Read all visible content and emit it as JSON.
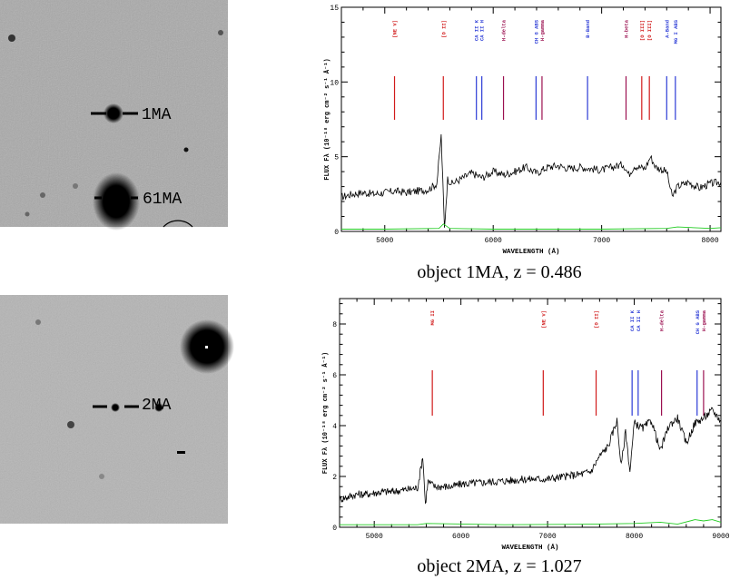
{
  "panels": [
    {
      "id": "1ma",
      "caption": "object 1MA, z = 0.486",
      "stamp": {
        "labels": [
          {
            "text": "1MA"
          },
          {
            "text": "61MA"
          }
        ]
      },
      "chart_data": {
        "type": "line",
        "xlabel": "WAVELENGTH (Å)",
        "ylabel": "FLUX Fλ (10⁻¹⁸ erg cm⁻² s⁻¹ Å⁻¹)",
        "xlim": [
          4600,
          8100
        ],
        "ylim": [
          0,
          15
        ],
        "xticks": [
          5000,
          6000,
          7000,
          8000
        ],
        "yticks": [
          0,
          5,
          10,
          15
        ],
        "lines": [
          {
            "label": "[NE V]",
            "x": 5090,
            "color": "#d11a1a"
          },
          {
            "label": "[O II]",
            "x": 5540,
            "color": "#d11a1a"
          },
          {
            "label": "CA II K",
            "x": 5845,
            "color": "#2b3bd6"
          },
          {
            "label": "CA II H",
            "x": 5895,
            "color": "#2b3bd6"
          },
          {
            "label": "H-delta",
            "x": 6095,
            "color": "#9b1050"
          },
          {
            "label": "CH G ABS",
            "x": 6395,
            "color": "#2b3bd6"
          },
          {
            "label": "H-gamma",
            "x": 6450,
            "color": "#9b1050"
          },
          {
            "label": "B-Band",
            "x": 6870,
            "color": "#2b3bd6"
          },
          {
            "label": "H-beta",
            "x": 7225,
            "color": "#9b1050"
          },
          {
            "label": "[O III]",
            "x": 7370,
            "color": "#d11a1a"
          },
          {
            "label": "[O III]",
            "x": 7440,
            "color": "#d11a1a"
          },
          {
            "label": "A-Band",
            "x": 7600,
            "color": "#2b3bd6"
          },
          {
            "label": "MG I ABS",
            "x": 7680,
            "color": "#2b3bd6"
          }
        ],
        "spectrum": {
          "x": [
            4600,
            4700,
            4800,
            4900,
            5000,
            5100,
            5200,
            5300,
            5400,
            5480,
            5520,
            5550,
            5580,
            5620,
            5700,
            5800,
            5900,
            6000,
            6100,
            6200,
            6300,
            6400,
            6500,
            6600,
            6700,
            6800,
            6900,
            7000,
            7100,
            7200,
            7250,
            7300,
            7400,
            7450,
            7500,
            7600,
            7650,
            7700,
            7800,
            7900,
            8000,
            8100
          ],
          "y": [
            2.3,
            2.5,
            2.6,
            2.5,
            2.6,
            2.7,
            2.6,
            2.7,
            2.8,
            3.2,
            6.4,
            0.2,
            3.5,
            3.2,
            3.5,
            3.9,
            3.6,
            4.0,
            3.8,
            4.0,
            4.3,
            3.9,
            4.3,
            4.4,
            4.2,
            4.3,
            4.2,
            4.1,
            4.3,
            4.5,
            3.8,
            4.4,
            4.2,
            5.0,
            4.3,
            4.0,
            2.3,
            3.0,
            3.3,
            2.9,
            3.2,
            3.3
          ]
        },
        "error": {
          "x": [
            4600,
            5000,
            5500,
            5540,
            5600,
            6000,
            7000,
            7600,
            7700,
            8000,
            8100
          ],
          "y": [
            0.15,
            0.15,
            0.2,
            0.5,
            0.2,
            0.15,
            0.15,
            0.2,
            0.3,
            0.2,
            0.25
          ]
        }
      }
    },
    {
      "id": "2ma",
      "caption": "object 2MA, z = 1.027",
      "stamp": {
        "labels": [
          {
            "text": "2MA"
          }
        ]
      },
      "chart_data": {
        "type": "line",
        "xlabel": "WAVELENGTH (Å)",
        "ylabel": "FLUX Fλ (10⁻¹⁸ erg cm⁻² s⁻¹ Å⁻¹)",
        "xlim": [
          4600,
          9000
        ],
        "ylim": [
          0,
          9
        ],
        "xticks": [
          5000,
          6000,
          7000,
          8000,
          9000
        ],
        "yticks": [
          0,
          2,
          4,
          6,
          8
        ],
        "lines": [
          {
            "label": "MG II",
            "x": 5670,
            "color": "#d11a1a"
          },
          {
            "label": "[NE V]",
            "x": 6950,
            "color": "#d11a1a"
          },
          {
            "label": "[O II]",
            "x": 7560,
            "color": "#d11a1a"
          },
          {
            "label": "CA II K",
            "x": 7975,
            "color": "#2b3bd6"
          },
          {
            "label": "CA II H",
            "x": 8045,
            "color": "#2b3bd6"
          },
          {
            "label": "H-delta",
            "x": 8315,
            "color": "#9b1050"
          },
          {
            "label": "CH G ABS",
            "x": 8725,
            "color": "#2b3bd6"
          },
          {
            "label": "H-gamma",
            "x": 8800,
            "color": "#9b1050"
          }
        ],
        "spectrum": {
          "x": [
            4600,
            4700,
            4800,
            4900,
            5000,
            5100,
            5200,
            5300,
            5400,
            5500,
            5560,
            5590,
            5620,
            5700,
            5800,
            5900,
            6000,
            6200,
            6400,
            6600,
            6800,
            7000,
            7200,
            7400,
            7500,
            7600,
            7700,
            7800,
            7850,
            7900,
            7950,
            8000,
            8100,
            8200,
            8300,
            8400,
            8500,
            8600,
            8700,
            8800,
            8900,
            9000
          ],
          "y": [
            1.1,
            1.2,
            1.3,
            1.3,
            1.35,
            1.4,
            1.4,
            1.45,
            1.5,
            1.55,
            2.8,
            0.9,
            1.8,
            1.6,
            1.6,
            1.6,
            1.7,
            1.75,
            1.8,
            1.85,
            1.9,
            1.9,
            2.0,
            2.1,
            2.2,
            2.8,
            3.2,
            4.2,
            2.4,
            3.8,
            2.2,
            4.1,
            3.9,
            4.2,
            3.0,
            4.0,
            4.3,
            3.3,
            4.1,
            4.3,
            4.6,
            4.2
          ]
        },
        "error": {
          "x": [
            4600,
            5500,
            5600,
            6500,
            7500,
            8000,
            8300,
            8500,
            8700,
            8800,
            8900,
            9000
          ],
          "y": [
            0.1,
            0.1,
            0.15,
            0.1,
            0.12,
            0.15,
            0.2,
            0.12,
            0.3,
            0.25,
            0.3,
            0.2
          ]
        }
      }
    }
  ]
}
